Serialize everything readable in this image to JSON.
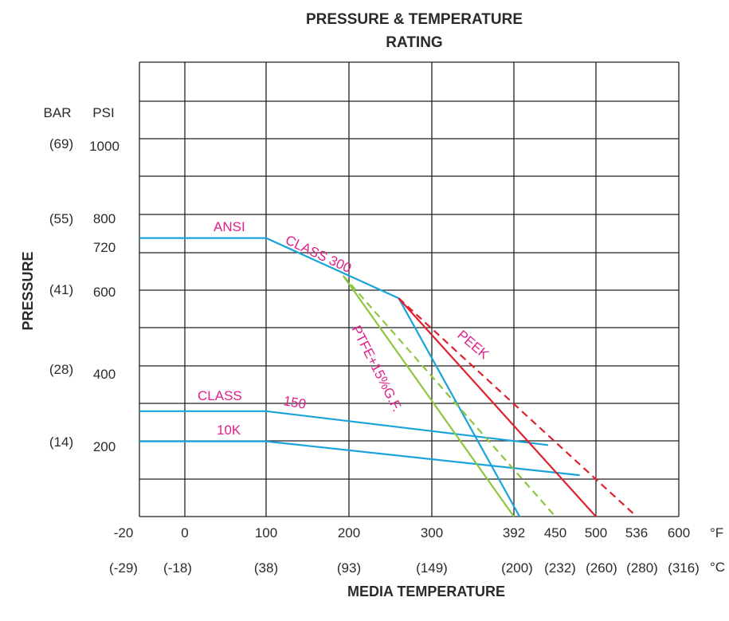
{
  "chart_data": {
    "type": "line",
    "title_line1": "PRESSURE & TEMPERATURE",
    "title_line2": "RATING",
    "xlabel": "MEDIA TEMPERATURE",
    "ylabel": "PRESSURE",
    "x_unit": "°F",
    "x_unit_alt": "°C",
    "y_unit": "PSI",
    "y_unit_alt": "BAR",
    "xlim": [
      -20,
      600
    ],
    "ylim": [
      0,
      1100
    ],
    "x_ticks": [
      {
        "f": "-20",
        "c": "(-29)"
      },
      {
        "f": "0",
        "c": "(-18)"
      },
      {
        "f": "100",
        "c": "(38)"
      },
      {
        "f": "200",
        "c": "(93)"
      },
      {
        "f": "300",
        "c": "(149)"
      },
      {
        "f": "392",
        "c": "(200)"
      },
      {
        "f": "450",
        "c": "(232)"
      },
      {
        "f": "500",
        "c": "(260)"
      },
      {
        "f": "536",
        "c": "(280)"
      },
      {
        "f": "600",
        "c": "(316)"
      }
    ],
    "y_ticks": [
      {
        "psi": "1000",
        "bar": "(69)"
      },
      {
        "psi": "800",
        "bar": "(55)"
      },
      {
        "psi": "720",
        "bar": ""
      },
      {
        "psi": "600",
        "bar": "(41)"
      },
      {
        "psi": "400",
        "bar": "(28)"
      },
      {
        "psi": "200",
        "bar": "(14)"
      }
    ],
    "annotations": [
      "ANSI",
      "CLASS 300",
      "CLASS",
      "150",
      "10K",
      "PTFE+15%G.F.",
      "PEEK"
    ],
    "series": [
      {
        "color": "#1aa3db",
        "style": "solid",
        "points": [
          [
            -20,
            740
          ],
          [
            100,
            740
          ],
          [
            200,
            640
          ],
          [
            260,
            580
          ],
          [
            400,
            0
          ]
        ]
      },
      {
        "color": "#1aa3db",
        "style": "solid",
        "points": [
          [
            -20,
            280
          ],
          [
            100,
            280
          ],
          [
            440,
            190
          ]
        ]
      },
      {
        "color": "#1aa3db",
        "style": "solid",
        "points": [
          [
            -20,
            200
          ],
          [
            100,
            200
          ],
          [
            480,
            110
          ]
        ]
      },
      {
        "color": "#8dc63f",
        "style": "solid",
        "points": [
          [
            193,
            640
          ],
          [
            392,
            0
          ]
        ]
      },
      {
        "color": "#8dc63f",
        "style": "dashed",
        "points": [
          [
            193,
            640
          ],
          [
            450,
            0
          ]
        ]
      },
      {
        "color": "#e0202e",
        "style": "solid",
        "points": [
          [
            260,
            580
          ],
          [
            500,
            0
          ]
        ]
      },
      {
        "color": "#e0202e",
        "style": "dashed",
        "points": [
          [
            260,
            580
          ],
          [
            536,
            0
          ]
        ]
      }
    ]
  }
}
